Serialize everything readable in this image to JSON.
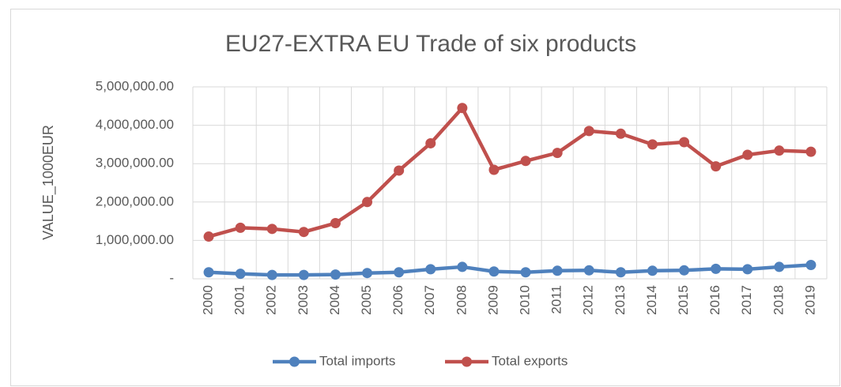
{
  "chart_data": {
    "type": "line",
    "title": "EU27-EXTRA EU Trade of six products",
    "y_label": "VALUE_1000EUR",
    "categories": [
      "2000",
      "2001",
      "2002",
      "2003",
      "2004",
      "2005",
      "2006",
      "2007",
      "2008",
      "2009",
      "2010",
      "2011",
      "2012",
      "2013",
      "2014",
      "2015",
      "2016",
      "2017",
      "2018",
      "2019"
    ],
    "series": [
      {
        "name": "Total imports",
        "color": "#4f81bd",
        "values": [
          170000,
          130000,
          100000,
          100000,
          110000,
          150000,
          170000,
          250000,
          310000,
          190000,
          170000,
          210000,
          220000,
          170000,
          210000,
          220000,
          260000,
          250000,
          310000,
          360000
        ]
      },
      {
        "name": "Total exports",
        "color": "#c0504d",
        "values": [
          1100000,
          1330000,
          1300000,
          1220000,
          1450000,
          2000000,
          2820000,
          3530000,
          4450000,
          2840000,
          3070000,
          3280000,
          3850000,
          3780000,
          3500000,
          3560000,
          2930000,
          3230000,
          3340000,
          3310000
        ]
      }
    ],
    "ylim": [
      0,
      5000000
    ],
    "yticks": [
      {
        "value": 0,
        "label": "-"
      },
      {
        "value": 1000000,
        "label": "1,000,000.00"
      },
      {
        "value": 2000000,
        "label": "2,000,000.00"
      },
      {
        "value": 3000000,
        "label": "3,000,000.00"
      },
      {
        "value": 4000000,
        "label": "4,000,000.00"
      },
      {
        "value": 5000000,
        "label": "5,000,000.00"
      }
    ],
    "grid": true,
    "legend": "bottom"
  }
}
